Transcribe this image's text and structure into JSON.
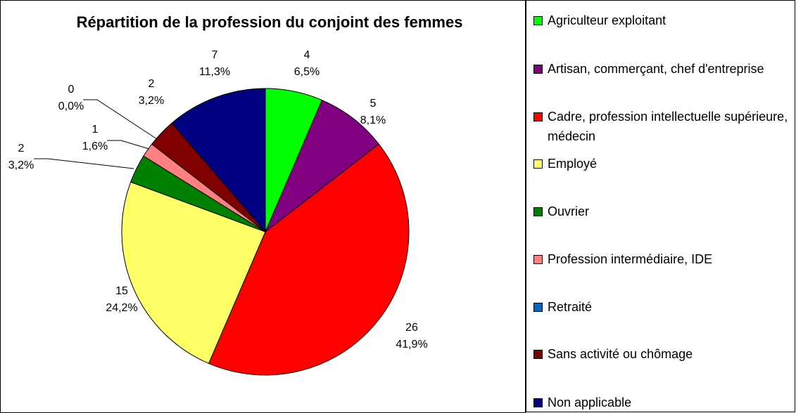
{
  "chart_data": {
    "type": "pie",
    "title": "Répartition de la profession du conjoint des femmes",
    "categories": [
      "Agriculteur exploitant",
      "Artisan, commerçant, chef d'entreprise",
      "Cadre, profession intellectuelle supérieure, médecin",
      "Employé",
      "Ouvrier",
      "Profession intermédiaire, IDE",
      "Retraité",
      "Sans activité ou chômage",
      "Non applicable"
    ],
    "values": [
      4,
      5,
      26,
      15,
      2,
      1,
      0,
      2,
      7
    ],
    "percent_labels": [
      "6,5%",
      "8,1%",
      "41,9%",
      "24,2%",
      "3,2%",
      "1,6%",
      "0,0%",
      "3,2%",
      "11,3%"
    ],
    "colors": [
      "#00ff00",
      "#800080",
      "#ff0000",
      "#ffff66",
      "#008000",
      "#ff8080",
      "#0066cc",
      "#800000",
      "#000080"
    ],
    "legend": "right"
  }
}
